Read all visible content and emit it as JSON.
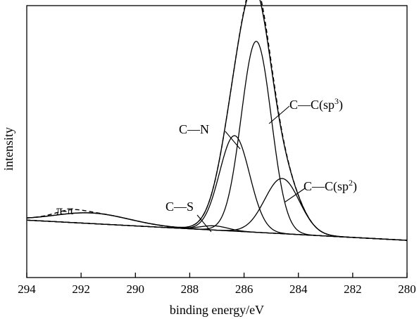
{
  "chart_data": {
    "type": "line",
    "title": "",
    "xlabel": "binding energy/eV",
    "ylabel": "intensity",
    "xlim": [
      294,
      280
    ],
    "x_reversed": true,
    "xticks": [
      294,
      292,
      290,
      288,
      286,
      284,
      282,
      280
    ],
    "ylim": [
      0,
      1
    ],
    "yticks": false,
    "grid": false,
    "legend": "none",
    "background": {
      "x0": 294,
      "y0": 0.095,
      "x1": 280,
      "y1": 0.0
    },
    "peaks": [
      {
        "label_text": "π-π",
        "center": 291.6,
        "height": 0.05,
        "fwhm": 3.2
      },
      {
        "label_text": "C—S",
        "center": 287.1,
        "height": 0.02,
        "fwhm": 1.2
      },
      {
        "label_text": "C—N",
        "center": 286.35,
        "height": 0.45,
        "fwhm": 1.3
      },
      {
        "label_text": "C—C(sp",
        "label_sup": "3",
        "label_after": ")",
        "center": 285.55,
        "height": 0.9,
        "fwhm": 1.3
      },
      {
        "label_text": "C—C(sp",
        "label_sup": "2",
        "label_after": ")",
        "center": 284.6,
        "height": 0.26,
        "fwhm": 1.5
      }
    ],
    "series": [
      {
        "role": "component_peaks",
        "style": "solid"
      },
      {
        "role": "fitted_envelope",
        "style": "solid"
      },
      {
        "role": "measured",
        "style": "dashed"
      }
    ]
  }
}
